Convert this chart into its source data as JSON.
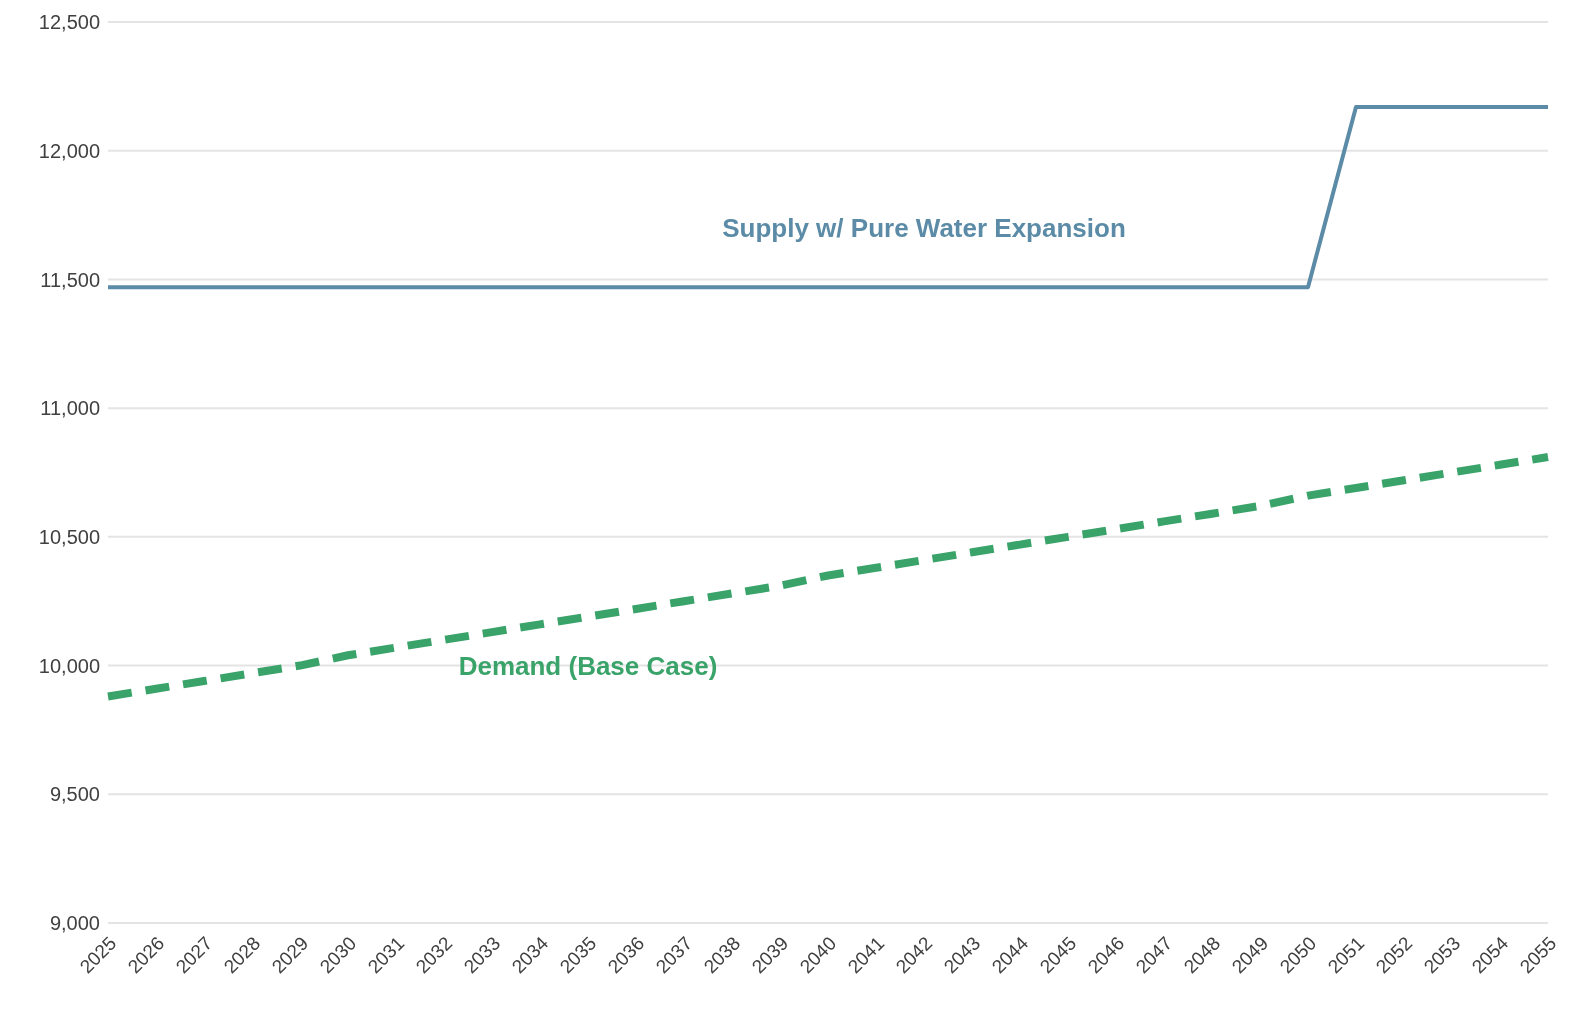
{
  "chart_data": {
    "type": "line",
    "categories": [
      "2025",
      "2026",
      "2027",
      "2028",
      "2029",
      "2030",
      "2031",
      "2032",
      "2033",
      "2034",
      "2035",
      "2036",
      "2037",
      "2038",
      "2039",
      "2040",
      "2041",
      "2042",
      "2043",
      "2044",
      "2045",
      "2046",
      "2047",
      "2048",
      "2049",
      "2050",
      "2051",
      "2052",
      "2053",
      "2054",
      "2055"
    ],
    "series": [
      {
        "name": "Supply w/ Pure Water Expansion",
        "color": "#5b8ba6",
        "line_style": "solid",
        "values": [
          11470,
          11470,
          11470,
          11470,
          11470,
          11470,
          11470,
          11470,
          11470,
          11470,
          11470,
          11470,
          11470,
          11470,
          11470,
          11470,
          11470,
          11470,
          11470,
          11470,
          11470,
          11470,
          11470,
          11470,
          11470,
          11470,
          12170,
          12170,
          12170,
          12170,
          12170
        ]
      },
      {
        "name": "Demand (Base Case)",
        "color": "#3aa36a",
        "line_style": "dashed",
        "values": [
          9880,
          9910,
          9940,
          9970,
          10000,
          10040,
          10070,
          10100,
          10130,
          10160,
          10190,
          10220,
          10250,
          10280,
          10310,
          10350,
          10380,
          10410,
          10440,
          10470,
          10500,
          10530,
          10560,
          10590,
          10620,
          10660,
          10690,
          10720,
          10750,
          10780,
          10810
        ]
      }
    ],
    "ylim": [
      9000,
      12500
    ],
    "yticks": [
      {
        "value": 9000,
        "label": "9,000"
      },
      {
        "value": 9500,
        "label": "9,500"
      },
      {
        "value": 10000,
        "label": "10,000"
      },
      {
        "value": 10500,
        "label": "10,500"
      },
      {
        "value": 11000,
        "label": "11,000"
      },
      {
        "value": 11500,
        "label": "11,500"
      },
      {
        "value": 12000,
        "label": "12,000"
      },
      {
        "value": 12500,
        "label": "12,500"
      }
    ],
    "grid": "y",
    "marker": "none"
  }
}
